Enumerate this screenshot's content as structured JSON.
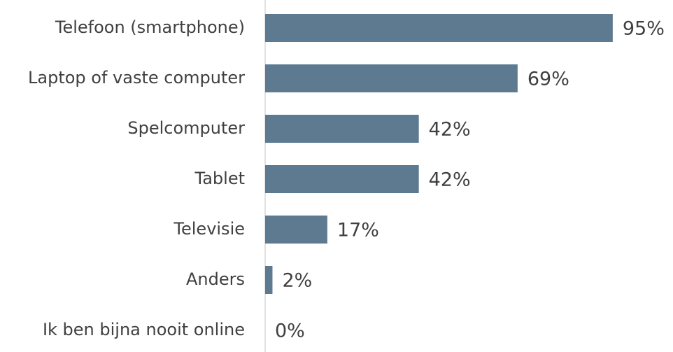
{
  "chart_data": {
    "type": "bar",
    "orientation": "horizontal",
    "categories": [
      "Telefoon (smartphone)",
      "Laptop of vaste computer",
      "Spelcomputer",
      "Tablet",
      "Televisie",
      "Anders",
      "Ik ben bijna nooit online"
    ],
    "values": [
      95,
      69,
      42,
      42,
      17,
      2,
      0
    ],
    "value_labels": [
      "95%",
      "69%",
      "42%",
      "42%",
      "17%",
      "2%",
      "0%"
    ],
    "color": "#5e7a91",
    "xlim": [
      0,
      100
    ]
  }
}
